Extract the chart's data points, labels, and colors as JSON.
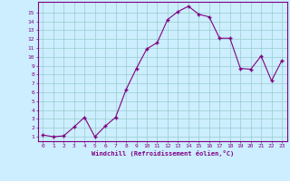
{
  "x": [
    0,
    1,
    2,
    3,
    4,
    5,
    6,
    7,
    8,
    9,
    10,
    11,
    12,
    13,
    14,
    15,
    16,
    17,
    18,
    19,
    20,
    21,
    22,
    23
  ],
  "y": [
    1.2,
    1.0,
    1.1,
    2.1,
    3.2,
    1.0,
    2.2,
    3.2,
    6.3,
    8.7,
    10.9,
    11.6,
    14.2,
    15.1,
    15.7,
    14.8,
    14.5,
    12.1,
    12.1,
    8.7,
    8.6,
    10.1,
    7.3,
    9.6
  ],
  "line_color": "#800080",
  "marker": "D",
  "marker_size": 2,
  "bg_color": "#cceeff",
  "grid_color": "#99cccc",
  "xlabel": "Windchill (Refroidissement éolien,°C)",
  "ylabel_ticks": [
    1,
    2,
    3,
    4,
    5,
    6,
    7,
    8,
    9,
    10,
    11,
    12,
    13,
    14,
    15
  ],
  "xlim": [
    -0.5,
    23.5
  ],
  "ylim": [
    0.5,
    16.2
  ],
  "tick_label_color": "#800080",
  "axis_label_color": "#800080",
  "spine_color": "#800080"
}
